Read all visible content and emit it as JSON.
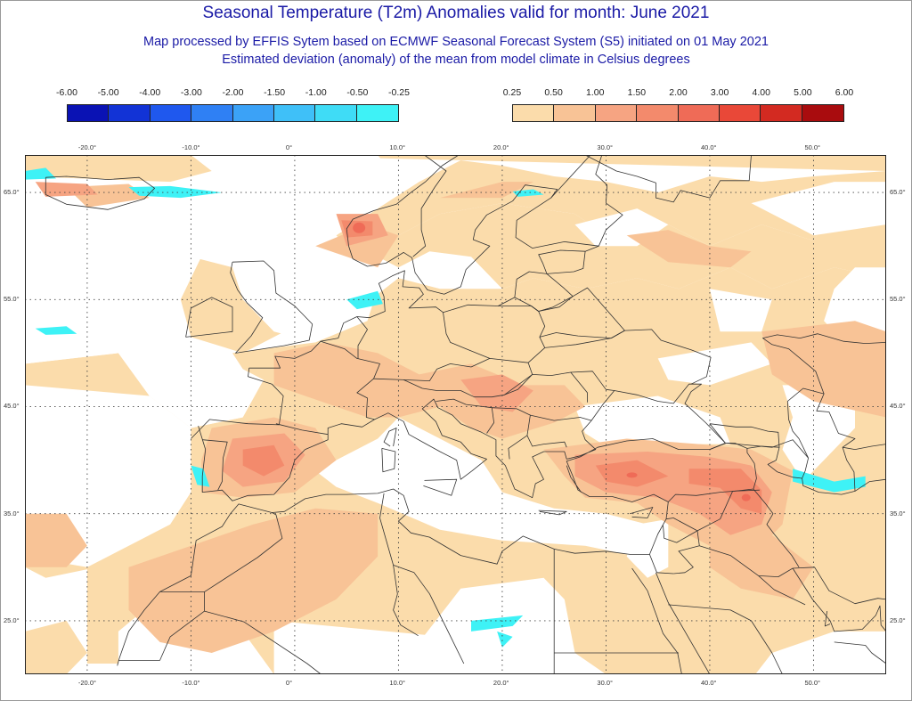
{
  "header": {
    "title": "Seasonal Temperature (T2m) Anomalies valid for month: June 2021",
    "subtitle1": "Map processed by EFFIS Sytem based on ECMWF Seasonal Forecast System (S5) initiated on 01 May 2021",
    "subtitle2": "Estimated deviation (anomaly) of the mean from model climate in Celsius degrees"
  },
  "legend_negative": {
    "labels": [
      "-6.00",
      "-5.00",
      "-4.00",
      "-3.00",
      "-2.00",
      "-1.50",
      "-1.00",
      "-0.50",
      "-0.25"
    ],
    "colors": [
      "#0a12b4",
      "#1233d6",
      "#1f58ee",
      "#2f80f4",
      "#3ba2f7",
      "#3fc0f8",
      "#3fdcf6",
      "#3ef2f6"
    ]
  },
  "legend_positive": {
    "labels": [
      "0.25",
      "0.50",
      "1.00",
      "1.50",
      "2.00",
      "3.00",
      "4.00",
      "5.00",
      "6.00"
    ],
    "colors": [
      "#fbdcab",
      "#f8c396",
      "#f6a482",
      "#f38a6c",
      "#ef6b57",
      "#e94838",
      "#d32a21",
      "#a90c0e"
    ]
  },
  "colors": {
    "land": "#ffffff",
    "anomaly_025": "#fbdcab",
    "anomaly_050": "#f8c396",
    "anomaly_100": "#f6a482",
    "anomaly_150": "#f38a6c",
    "anomaly_200": "#ef6b57",
    "cold": "#3ef2f6",
    "boundary": "#333333",
    "grid": "#444444"
  },
  "map": {
    "lon_ticks": [
      "-20.0°",
      "-10.0°",
      "0°",
      "10.0°",
      "20.0°",
      "30.0°",
      "40.0°",
      "50.0°"
    ],
    "lat_ticks": [
      "65.0°",
      "55.0°",
      "45.0°",
      "35.0°",
      "25.0°"
    ],
    "lon_range": [
      -26,
      57
    ],
    "lat_range": [
      20,
      68.5
    ]
  }
}
